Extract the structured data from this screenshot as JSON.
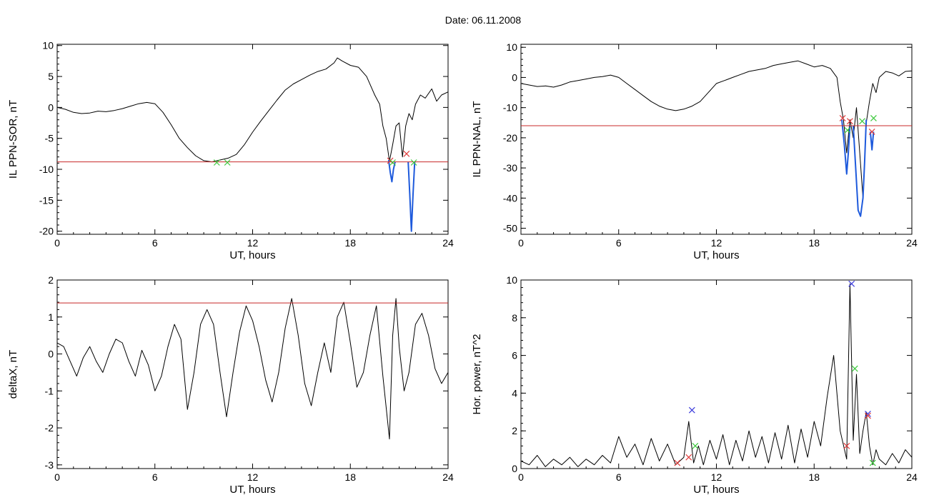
{
  "figure": {
    "title": "Date:  06.11.2008"
  },
  "chart_data": [
    {
      "id": "ppn-sor",
      "type": "line",
      "xlabel": "UT, hours",
      "ylabel": "IL PPN-SOR, nT",
      "xlim": [
        0,
        24
      ],
      "ylim": [
        -20.5,
        10.2
      ],
      "xticks": [
        0,
        6,
        12,
        18,
        24
      ],
      "yticks": [
        -20,
        -15,
        -10,
        -5,
        0,
        5,
        10
      ],
      "threshold": -8.8,
      "series": [
        {
          "color": "#000000",
          "x": [
            0,
            0.5,
            1,
            1.5,
            2,
            2.5,
            3,
            3.5,
            4,
            4.5,
            5,
            5.5,
            6,
            6.5,
            7,
            7.5,
            8,
            8.5,
            9,
            9.5,
            10,
            10.5,
            11,
            11.5,
            12,
            12.5,
            13,
            13.5,
            14,
            14.5,
            15,
            15.5,
            16,
            16.5,
            17,
            17.2,
            17.5,
            18,
            18.5,
            19,
            19.5,
            19.8,
            20,
            20.2,
            20.4,
            20.6,
            20.8,
            21,
            21.2,
            21.4,
            21.6,
            21.8,
            22,
            22.3,
            22.6,
            23,
            23.3,
            23.6,
            24
          ],
          "y": [
            0,
            -0.3,
            -0.8,
            -1,
            -0.9,
            -0.6,
            -0.7,
            -0.5,
            -0.2,
            0.2,
            0.6,
            0.8,
            0.6,
            -0.8,
            -2.8,
            -5,
            -6.5,
            -7.8,
            -8.6,
            -8.8,
            -8.5,
            -8.2,
            -7.6,
            -6,
            -4,
            -2.2,
            -0.5,
            1.2,
            2.8,
            3.8,
            4.5,
            5.2,
            5.8,
            6.2,
            7.2,
            8,
            7.5,
            6.8,
            6.5,
            5,
            2,
            0.5,
            -3,
            -5,
            -8.7,
            -6,
            -3,
            -2.5,
            -8,
            -3,
            -1,
            -2,
            0.5,
            2,
            1.5,
            3,
            1,
            2,
            2.5
          ]
        },
        {
          "color": "#1e5adc",
          "x": [
            20.35,
            20.45,
            20.55,
            20.65,
            20.75
          ],
          "y": [
            -8.5,
            -10.5,
            -12,
            -10,
            -8.8
          ]
        },
        {
          "color": "#1e5adc",
          "x": [
            21.55,
            21.65,
            21.75,
            21.85,
            21.95
          ],
          "y": [
            -8.8,
            -14,
            -20,
            -14,
            -8.8
          ]
        }
      ],
      "markers": [
        {
          "symbol": "x",
          "color": "#e03c3c",
          "x": 20.45,
          "y": -8.6
        },
        {
          "symbol": "x",
          "color": "#e03c3c",
          "x": 21.45,
          "y": -7.5
        },
        {
          "symbol": "x",
          "color": "#3cc83c",
          "x": 9.8,
          "y": -8.9
        },
        {
          "symbol": "x",
          "color": "#3cc83c",
          "x": 10.45,
          "y": -8.9
        },
        {
          "symbol": "x",
          "color": "#3cc83c",
          "x": 20.6,
          "y": -8.9
        },
        {
          "symbol": "x",
          "color": "#3cc83c",
          "x": 21.9,
          "y": -8.9
        }
      ]
    },
    {
      "id": "ppn-nal",
      "type": "line",
      "xlabel": "UT, hours",
      "ylabel": "IL PPN-NAL, nT",
      "xlim": [
        0,
        24
      ],
      "ylim": [
        -52,
        11
      ],
      "xticks": [
        0,
        6,
        12,
        18,
        24
      ],
      "yticks": [
        -50,
        -40,
        -30,
        -20,
        -10,
        0,
        10
      ],
      "threshold": -16,
      "series": [
        {
          "color": "#000000",
          "x": [
            0,
            0.5,
            1,
            1.5,
            2,
            2.5,
            3,
            3.5,
            4,
            4.5,
            5,
            5.5,
            6,
            6.5,
            7,
            7.5,
            8,
            8.5,
            9,
            9.5,
            10,
            10.5,
            11,
            11.5,
            12,
            12.5,
            13,
            13.5,
            14,
            14.5,
            15,
            15.5,
            16,
            16.5,
            17,
            17.5,
            18,
            18.5,
            19,
            19.4,
            19.6,
            19.8,
            20,
            20.2,
            20.4,
            20.6,
            20.8,
            21,
            21.2,
            21.4,
            21.6,
            21.8,
            22,
            22.4,
            22.8,
            23.2,
            23.6,
            24
          ],
          "y": [
            -2,
            -2.5,
            -3,
            -2.8,
            -3.2,
            -2.5,
            -1.5,
            -1,
            -0.5,
            0,
            0.3,
            0.8,
            0,
            -2,
            -4,
            -6,
            -8,
            -9.5,
            -10.5,
            -11,
            -10.5,
            -9.5,
            -8,
            -5,
            -2,
            -1,
            0,
            1,
            2,
            2.5,
            3,
            4,
            4.5,
            5,
            5.5,
            4.5,
            3.5,
            4,
            3,
            0,
            -8,
            -14,
            -25,
            -14,
            -20,
            -10,
            -25,
            -40,
            -15,
            -8,
            -2,
            -5,
            0,
            2,
            1.5,
            0.5,
            2,
            2.2
          ]
        },
        {
          "color": "#1e5adc",
          "x": [
            19.7,
            19.85,
            20,
            20.1,
            20.2
          ],
          "y": [
            -14,
            -22,
            -32,
            -25,
            -16
          ]
        },
        {
          "color": "#1e5adc",
          "x": [
            20.4,
            20.55,
            20.7,
            20.85,
            21,
            21.1,
            21.2
          ],
          "y": [
            -16,
            -30,
            -44,
            -46,
            -40,
            -28,
            -14
          ]
        },
        {
          "color": "#1e5adc",
          "x": [
            21.45,
            21.55,
            21.65
          ],
          "y": [
            -18,
            -24,
            -18
          ]
        }
      ],
      "markers": [
        {
          "symbol": "x",
          "color": "#e03c3c",
          "x": 19.75,
          "y": -13.5
        },
        {
          "symbol": "x",
          "color": "#e03c3c",
          "x": 20.2,
          "y": -14.5
        },
        {
          "symbol": "x",
          "color": "#e03c3c",
          "x": 21.55,
          "y": -18
        },
        {
          "symbol": "x",
          "color": "#3cc83c",
          "x": 20.05,
          "y": -17.5
        },
        {
          "symbol": "x",
          "color": "#3cc83c",
          "x": 20.95,
          "y": -14.5
        },
        {
          "symbol": "x",
          "color": "#3cc83c",
          "x": 21.65,
          "y": -13.5
        }
      ]
    },
    {
      "id": "deltax",
      "type": "line",
      "xlabel": "UT, hours",
      "ylabel": "deltaX, nT",
      "xlim": [
        0,
        24
      ],
      "ylim": [
        -3.1,
        2
      ],
      "xticks": [
        0,
        6,
        12,
        18,
        24
      ],
      "yticks": [
        -3,
        -2,
        -1,
        0,
        1,
        2
      ],
      "threshold": 1.38,
      "series": [
        {
          "color": "#000000",
          "x": [
            0,
            0.4,
            0.8,
            1.2,
            1.6,
            2,
            2.4,
            2.8,
            3.2,
            3.6,
            4,
            4.4,
            4.8,
            5.2,
            5.6,
            6,
            6.4,
            6.8,
            7.2,
            7.6,
            8,
            8.4,
            8.8,
            9.2,
            9.6,
            10,
            10.4,
            10.8,
            11.2,
            11.6,
            12,
            12.4,
            12.8,
            13.2,
            13.6,
            14,
            14.4,
            14.8,
            15.2,
            15.6,
            16,
            16.4,
            16.8,
            17.2,
            17.6,
            18,
            18.4,
            18.8,
            19.2,
            19.6,
            20,
            20.4,
            20.6,
            20.8,
            21,
            21.3,
            21.6,
            22,
            22.4,
            22.8,
            23.2,
            23.6,
            24
          ],
          "y": [
            0.3,
            0.2,
            -0.2,
            -0.6,
            -0.1,
            0.2,
            -0.2,
            -0.5,
            0,
            0.4,
            0.3,
            -0.2,
            -0.6,
            0.1,
            -0.3,
            -1,
            -0.6,
            0.2,
            0.8,
            0.4,
            -1.5,
            -0.5,
            0.8,
            1.2,
            0.8,
            -0.5,
            -1.7,
            -0.5,
            0.6,
            1.3,
            0.9,
            0.2,
            -0.7,
            -1.3,
            -0.5,
            0.7,
            1.5,
            0.5,
            -0.8,
            -1.4,
            -0.5,
            0.3,
            -0.5,
            1,
            1.4,
            0.3,
            -0.9,
            -0.5,
            0.5,
            1.3,
            -0.6,
            -2.3,
            0.5,
            1.5,
            0.2,
            -1,
            -0.5,
            0.8,
            1.1,
            0.5,
            -0.4,
            -0.8,
            -0.5
          ]
        }
      ],
      "markers": []
    },
    {
      "id": "hor-power",
      "type": "line",
      "xlabel": "UT, hours",
      "ylabel": "Hor. power, nT^2",
      "xlim": [
        0,
        24
      ],
      "ylim": [
        0,
        10
      ],
      "xticks": [
        0,
        6,
        12,
        18,
        24
      ],
      "yticks": [
        0,
        2,
        4,
        6,
        8,
        10
      ],
      "series": [
        {
          "color": "#000000",
          "x": [
            0,
            0.5,
            1,
            1.5,
            2,
            2.5,
            3,
            3.5,
            4,
            4.5,
            5,
            5.5,
            6,
            6.5,
            7,
            7.5,
            8,
            8.5,
            9,
            9.5,
            10,
            10.3,
            10.6,
            10.9,
            11.2,
            11.6,
            12,
            12.4,
            12.8,
            13.2,
            13.6,
            14,
            14.4,
            14.8,
            15.2,
            15.6,
            16,
            16.4,
            16.8,
            17.2,
            17.6,
            18,
            18.4,
            18.8,
            19.2,
            19.6,
            20,
            20.2,
            20.4,
            20.6,
            20.8,
            21,
            21.2,
            21.4,
            21.6,
            21.8,
            22,
            22.4,
            22.8,
            23.2,
            23.6,
            24
          ],
          "y": [
            0.4,
            0.2,
            0.7,
            0.1,
            0.5,
            0.2,
            0.6,
            0.1,
            0.5,
            0.2,
            0.7,
            0.3,
            1.7,
            0.6,
            1.3,
            0.2,
            1.6,
            0.4,
            1.3,
            0.2,
            0.6,
            2.5,
            0.3,
            1.2,
            0.2,
            1.5,
            0.5,
            1.8,
            0.2,
            1.5,
            0.4,
            2.0,
            0.6,
            1.7,
            0.3,
            1.9,
            0.5,
            2.3,
            0.3,
            2.1,
            0.6,
            2.5,
            1.2,
            3.8,
            6.0,
            2.0,
            0.5,
            9.8,
            1.5,
            5.0,
            0.8,
            2.0,
            3.0,
            1.2,
            0.2,
            1.0,
            0.5,
            0.2,
            0.8,
            0.3,
            1.0,
            0.6
          ]
        }
      ],
      "markers": [
        {
          "symbol": "x",
          "color": "#3c3cdc",
          "x": 10.5,
          "y": 3.1
        },
        {
          "symbol": "x",
          "color": "#3c3cdc",
          "x": 20.3,
          "y": 9.8
        },
        {
          "symbol": "x",
          "color": "#3c3cdc",
          "x": 21.3,
          "y": 2.9
        },
        {
          "symbol": "x",
          "color": "#e03c3c",
          "x": 9.6,
          "y": 0.3
        },
        {
          "symbol": "x",
          "color": "#e03c3c",
          "x": 10.3,
          "y": 0.6
        },
        {
          "symbol": "x",
          "color": "#e03c3c",
          "x": 20.0,
          "y": 1.2
        },
        {
          "symbol": "x",
          "color": "#e03c3c",
          "x": 21.3,
          "y": 2.8
        },
        {
          "symbol": "x",
          "color": "#3cc83c",
          "x": 10.7,
          "y": 1.2
        },
        {
          "symbol": "x",
          "color": "#3cc83c",
          "x": 20.5,
          "y": 5.3
        },
        {
          "symbol": "x",
          "color": "#3cc83c",
          "x": 21.6,
          "y": 0.3
        }
      ]
    }
  ]
}
